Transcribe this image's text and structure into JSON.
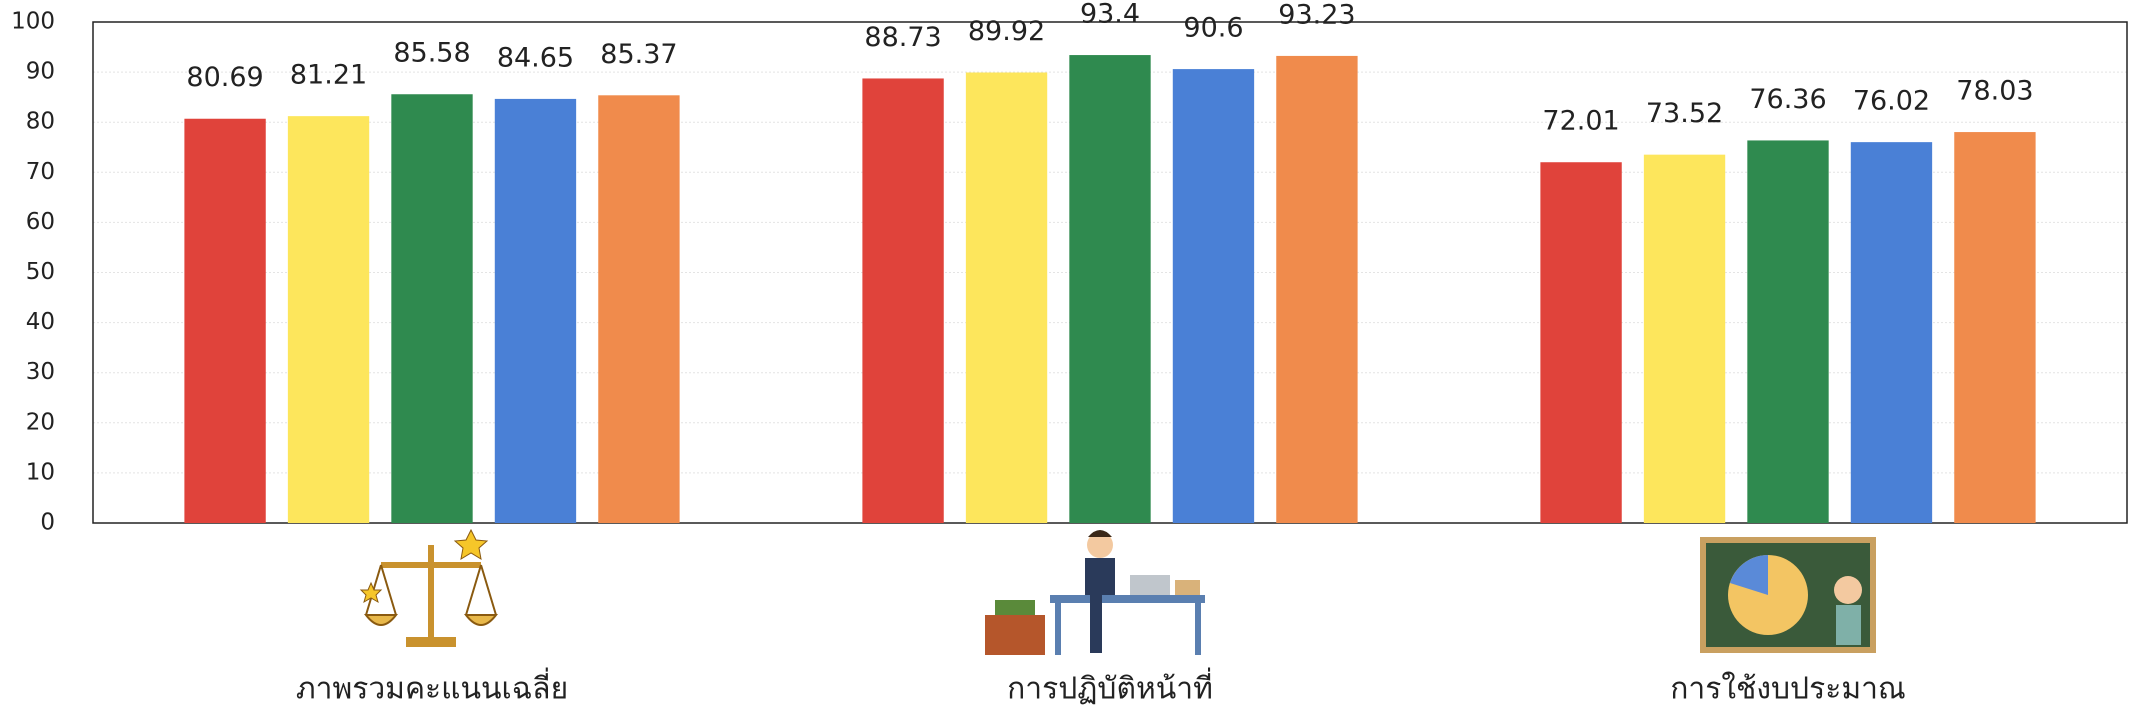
{
  "chart_data": {
    "type": "bar",
    "categories": [
      "ภาพรวมคะแนนเฉลี่ย",
      "การปฏิบัติหน้าที่",
      "การใช้งบประมาณ"
    ],
    "series": [
      {
        "color": "#e0433b",
        "values": [
          80.69,
          88.73,
          72.01
        ]
      },
      {
        "color": "#fde65c",
        "values": [
          81.21,
          89.92,
          73.52
        ]
      },
      {
        "color": "#2f8a4f",
        "values": [
          85.58,
          93.4,
          76.36
        ]
      },
      {
        "color": "#4a80d6",
        "values": [
          84.65,
          90.6,
          76.02
        ]
      },
      {
        "color": "#f08b4c",
        "values": [
          85.37,
          93.23,
          78.03
        ]
      }
    ],
    "ylim": [
      0,
      100
    ],
    "yticks": [
      0,
      10,
      20,
      30,
      40,
      50,
      60,
      70,
      80,
      90,
      100
    ],
    "grid": true
  }
}
